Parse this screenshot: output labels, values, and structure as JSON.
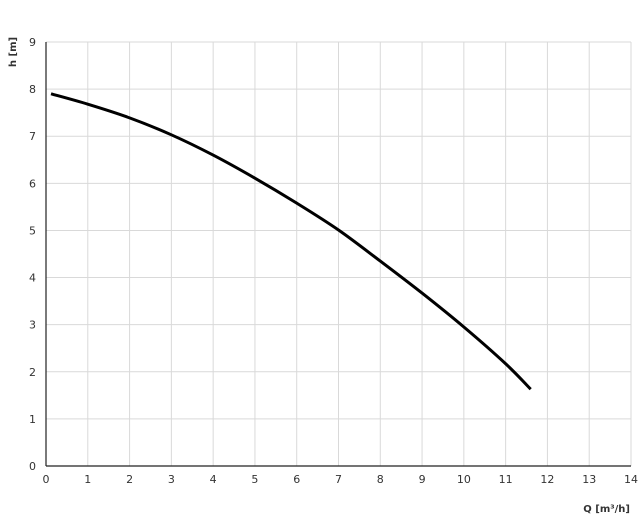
{
  "chart_data": {
    "type": "line",
    "title": "",
    "xlabel": "Q [m³/h]",
    "ylabel": "h [m]",
    "xlim": [
      0,
      14
    ],
    "ylim": [
      0,
      9
    ],
    "xticks": [
      "0",
      "1",
      "2",
      "3",
      "4",
      "5",
      "6",
      "7",
      "8",
      "9",
      "10",
      "11",
      "12",
      "13",
      "14"
    ],
    "yticks": [
      "0",
      "1",
      "2",
      "3",
      "4",
      "5",
      "6",
      "7",
      "8",
      "9"
    ],
    "grid": true,
    "line_color": "#000000",
    "grid_color": "#d9d9d9",
    "series": [
      {
        "x": [
          0.12,
          1,
          2,
          3,
          4,
          5,
          6,
          7,
          8,
          9,
          10,
          11,
          11.6
        ],
        "y": [
          7.9,
          7.68,
          7.39,
          7.03,
          6.6,
          6.11,
          5.58,
          5.01,
          4.35,
          3.67,
          2.95,
          2.17,
          1.63
        ]
      }
    ]
  }
}
